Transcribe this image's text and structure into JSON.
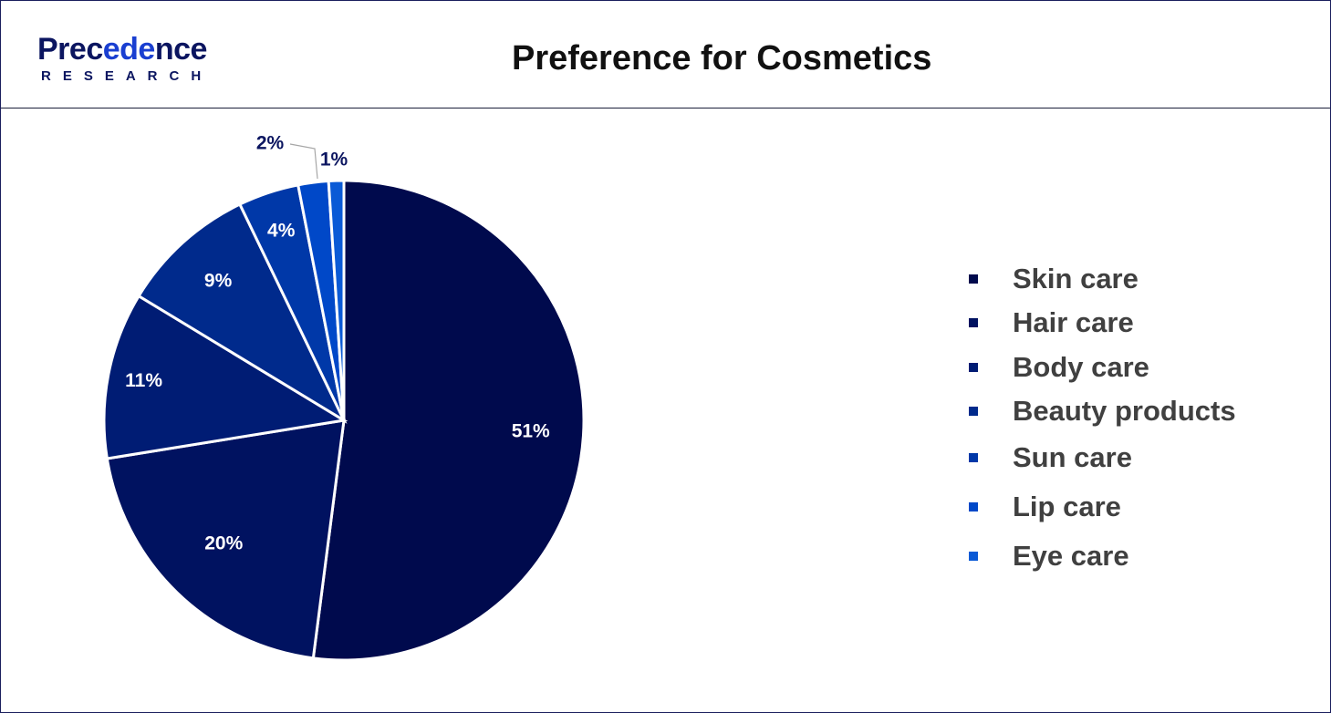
{
  "brand": {
    "logo_word_start": "Prec",
    "logo_word_accent": "ede",
    "logo_word_end": "nce",
    "logo_sub": "RESEARCH"
  },
  "chart_data": {
    "type": "pie",
    "title": "Preference for Cosmetics",
    "legend_position": "right",
    "slices": [
      {
        "label": "Skin care",
        "value": 51,
        "display": "51%",
        "color": "#000a4d"
      },
      {
        "label": "Hair care",
        "value": 20,
        "display": "20%",
        "color": "#001260"
      },
      {
        "label": "Body care",
        "value": 11,
        "display": "11%",
        "color": "#001c74"
      },
      {
        "label": "Beauty products",
        "value": 9,
        "display": "9%",
        "color": "#002a8c"
      },
      {
        "label": "Sun care",
        "value": 4,
        "display": "4%",
        "color": "#0038a8"
      },
      {
        "label": "Lip care",
        "value": 2,
        "display": "2%",
        "color": "#0048c8"
      },
      {
        "label": "Eye care",
        "value": 1,
        "display": "1%",
        "color": "#0a5ad6"
      }
    ]
  }
}
